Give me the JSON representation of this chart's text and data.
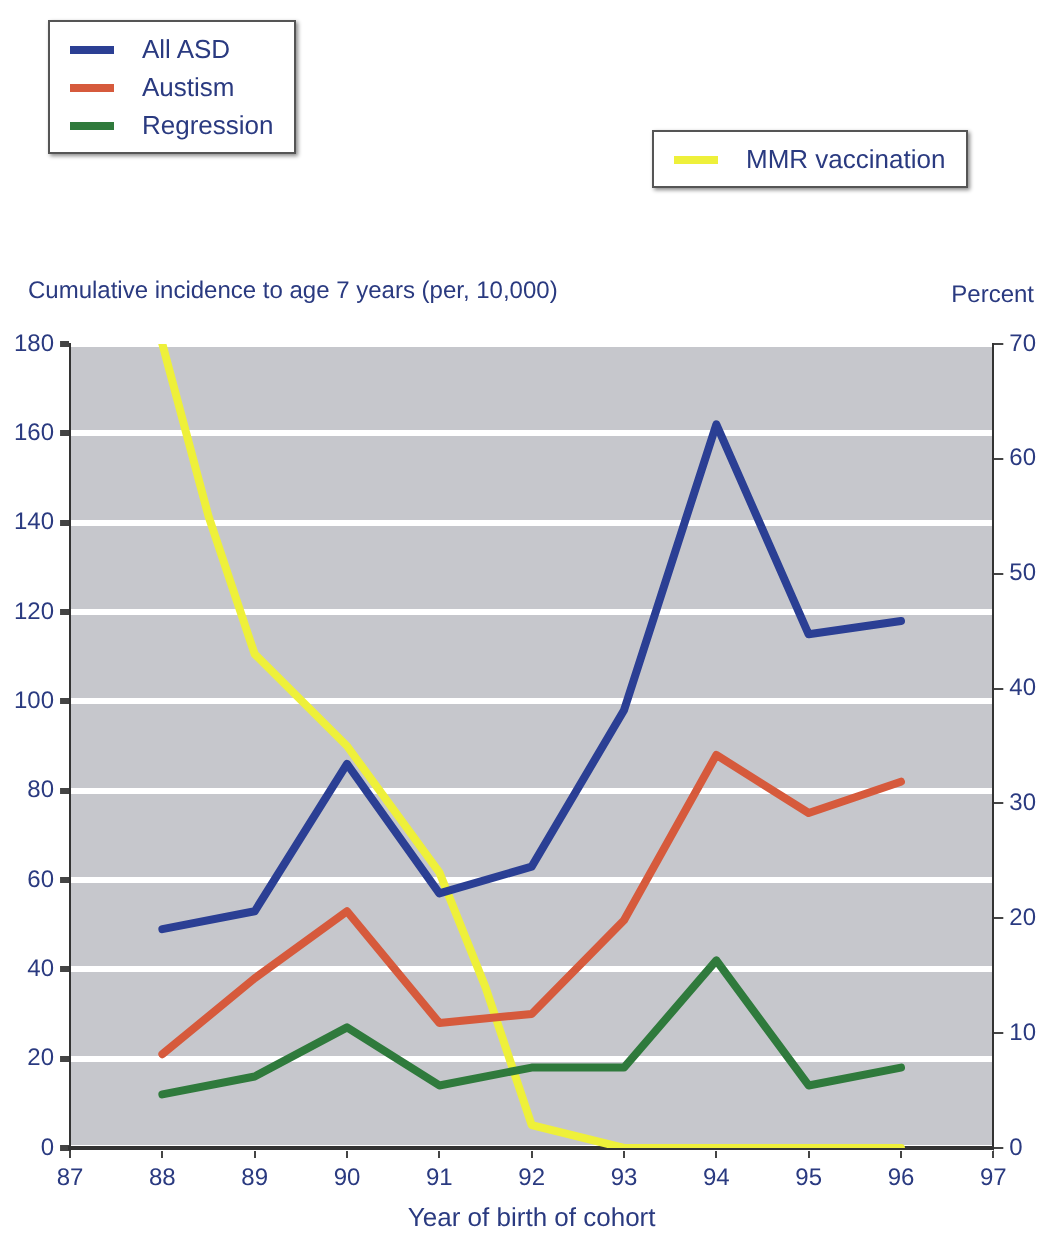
{
  "chart_data": {
    "type": "line",
    "ylabel": "Cumulative incidence to age 7 years (per, 10,000)",
    "y2label": "Percent",
    "xlabel": "Year of birth of cohort",
    "x": [
      88,
      89,
      90,
      91,
      92,
      93,
      94,
      95,
      96
    ],
    "series": [
      {
        "name": "All ASD",
        "color": "#2b3f94",
        "values": [
          49,
          53,
          86,
          57,
          63,
          98,
          162,
          115,
          118
        ]
      },
      {
        "name": "Austism",
        "color": "#d65a3c",
        "values": [
          21,
          38,
          53,
          28,
          30,
          51,
          88,
          75,
          82
        ]
      },
      {
        "name": "Regression",
        "color": "#2f7a3c",
        "values": [
          12,
          16,
          27,
          14,
          18,
          18,
          42,
          14,
          18
        ]
      },
      {
        "name": "MMR vaccination",
        "color": "#eef03a",
        "axis": "y2",
        "x": [
          88,
          88.5,
          89,
          90,
          91,
          91.5,
          92,
          93,
          94,
          95,
          96
        ],
        "values": [
          70,
          55,
          43,
          35,
          24,
          14,
          2,
          0,
          0,
          0,
          0
        ]
      }
    ],
    "xlim": [
      87,
      97
    ],
    "xticks": [
      87,
      88,
      89,
      90,
      91,
      92,
      93,
      94,
      95,
      96,
      97
    ],
    "ylim": [
      0,
      180
    ],
    "yticks": [
      0,
      20,
      40,
      60,
      80,
      100,
      120,
      140,
      160,
      180
    ],
    "y2lim": [
      0,
      70
    ],
    "y2ticks": [
      0,
      10,
      20,
      30,
      40,
      50,
      60,
      70
    ],
    "grid": "y",
    "legend": "top",
    "marker": "none",
    "line_style": "solid"
  }
}
